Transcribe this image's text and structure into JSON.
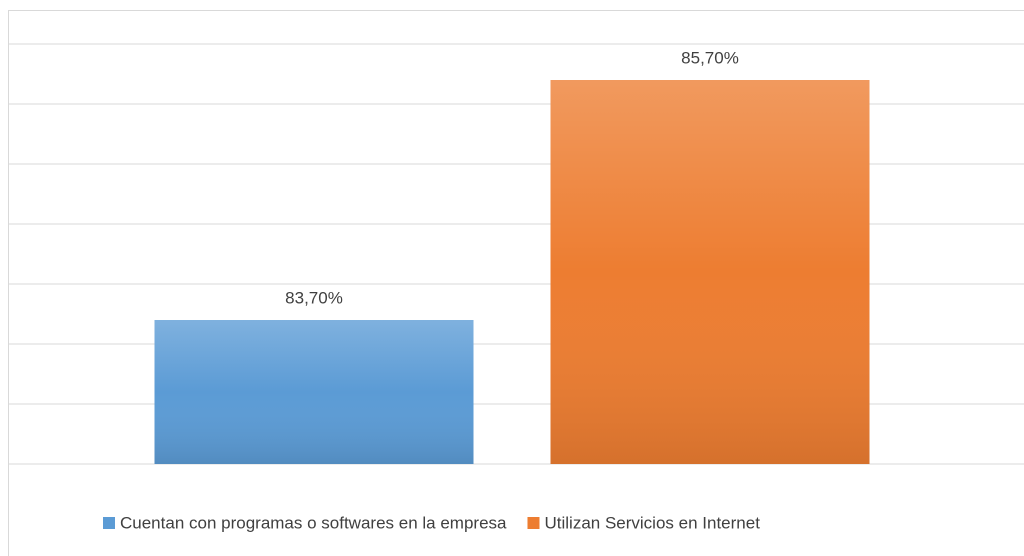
{
  "chart_data": {
    "type": "bar",
    "categories": [
      null
    ],
    "series": [
      {
        "name": "Cuentan con programas o softwares en la empresa",
        "color": "#5b9bd5",
        "values": [
          83.7
        ],
        "value_labels": [
          "83,70%"
        ]
      },
      {
        "name": "Utilizan Servicios en Internet",
        "color": "#ed7d31",
        "values": [
          85.7
        ],
        "value_labels": [
          "85,70%"
        ]
      }
    ],
    "ylim": [
      82.5,
      86
    ],
    "yticks": [
      82.5,
      83,
      83.5,
      84,
      84.5,
      85,
      85.5,
      86
    ],
    "grid": true,
    "legend": "bottom"
  }
}
